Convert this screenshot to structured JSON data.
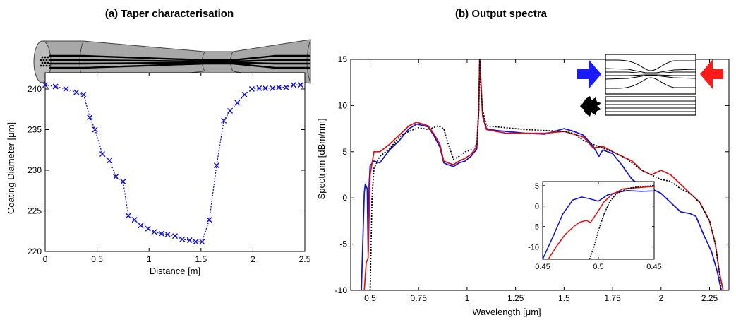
{
  "colors": {
    "blue": "#1010d8",
    "red": "#e01010",
    "black": "#000000",
    "taper_fill": "#a8a8a8"
  },
  "chart_data": [
    {
      "type": "line",
      "panel": "a",
      "title": "(a) Taper characterisation",
      "xlabel": "Distance [m]",
      "ylabel": "Coating Diameter [μm]",
      "xlim": [
        0,
        2.5
      ],
      "ylim": [
        220,
        242
      ],
      "xticks": [
        "0",
        "0.5",
        "1",
        "1.5",
        "2",
        "2.5"
      ],
      "yticks": [
        "220",
        "225",
        "230",
        "235",
        "240"
      ],
      "grid": false,
      "series": [
        {
          "color": "blue",
          "marker": "x",
          "line": "dotted",
          "points": [
            [
              0.0,
              240.5
            ],
            [
              0.1,
              240.3
            ],
            [
              0.2,
              240.0
            ],
            [
              0.3,
              239.6
            ],
            [
              0.37,
              239.3
            ],
            [
              0.43,
              236.5
            ],
            [
              0.48,
              235.0
            ],
            [
              0.55,
              232.0
            ],
            [
              0.62,
              231.2
            ],
            [
              0.68,
              229.2
            ],
            [
              0.75,
              228.6
            ],
            [
              0.8,
              224.4
            ],
            [
              0.86,
              223.9
            ],
            [
              0.92,
              223.2
            ],
            [
              0.99,
              222.8
            ],
            [
              1.05,
              222.4
            ],
            [
              1.12,
              222.2
            ],
            [
              1.18,
              222.1
            ],
            [
              1.25,
              221.9
            ],
            [
              1.32,
              221.5
            ],
            [
              1.39,
              221.4
            ],
            [
              1.45,
              221.2
            ],
            [
              1.51,
              221.2
            ],
            [
              1.58,
              223.9
            ],
            [
              1.65,
              230.6
            ],
            [
              1.72,
              236.1
            ],
            [
              1.78,
              237.3
            ],
            [
              1.85,
              238.3
            ],
            [
              1.92,
              239.3
            ],
            [
              1.99,
              240.0
            ],
            [
              2.06,
              240.1
            ],
            [
              2.12,
              240.1
            ],
            [
              2.19,
              240.1
            ],
            [
              2.25,
              240.2
            ],
            [
              2.32,
              240.2
            ],
            [
              2.39,
              240.5
            ],
            [
              2.46,
              240.5
            ]
          ]
        }
      ]
    },
    {
      "type": "line",
      "panel": "b",
      "title": "(b) Output spectra",
      "xlabel": "Wavelength [μm]",
      "ylabel": "Spectrum [dBm/nm]",
      "xlim": [
        0.4,
        2.35
      ],
      "ylim": [
        -10,
        15
      ],
      "xticks": [
        "0.5",
        "0.75",
        "1",
        "1.25",
        "1.5",
        "1.75",
        "2",
        "2.25"
      ],
      "yticks": [
        "-10",
        "-5",
        "0",
        "5",
        "10",
        "15"
      ],
      "grid": false,
      "series": [
        {
          "color": "blue",
          "line": "solid",
          "points": [
            [
              0.455,
              -10
            ],
            [
              0.47,
              0.5
            ],
            [
              0.475,
              1.5
            ],
            [
              0.485,
              1.0
            ],
            [
              0.49,
              -6
            ],
            [
              0.495,
              1.5
            ],
            [
              0.5,
              3.5
            ],
            [
              0.52,
              4.0
            ],
            [
              0.55,
              3.8
            ],
            [
              0.6,
              5.2
            ],
            [
              0.65,
              6.2
            ],
            [
              0.7,
              7.5
            ],
            [
              0.74,
              8.0
            ],
            [
              0.8,
              7.7
            ],
            [
              0.83,
              6.7
            ],
            [
              0.86,
              5.5
            ],
            [
              0.88,
              3.8
            ],
            [
              0.9,
              3.6
            ],
            [
              0.93,
              3.4
            ],
            [
              0.96,
              3.8
            ],
            [
              0.99,
              4.0
            ],
            [
              1.02,
              4.5
            ],
            [
              1.05,
              5.3
            ],
            [
              1.06,
              9.5
            ],
            [
              1.065,
              15
            ],
            [
              1.07,
              13
            ],
            [
              1.08,
              9.0
            ],
            [
              1.1,
              7.5
            ],
            [
              1.15,
              7.3
            ],
            [
              1.2,
              7.2
            ],
            [
              1.3,
              7.0
            ],
            [
              1.4,
              6.9
            ],
            [
              1.5,
              7.5
            ],
            [
              1.55,
              7.2
            ],
            [
              1.6,
              6.8
            ],
            [
              1.65,
              5.6
            ],
            [
              1.68,
              4.5
            ],
            [
              1.7,
              5.2
            ],
            [
              1.75,
              4.8
            ],
            [
              1.8,
              3.5
            ],
            [
              1.85,
              2.0
            ],
            [
              1.9,
              1.3
            ],
            [
              1.95,
              1.0
            ],
            [
              2.0,
              0.5
            ],
            [
              2.05,
              -0.5
            ],
            [
              2.1,
              -1.5
            ],
            [
              2.15,
              -1.7
            ],
            [
              2.18,
              -2.0
            ],
            [
              2.22,
              -4.0
            ],
            [
              2.26,
              -5.8
            ],
            [
              2.29,
              -8.0
            ],
            [
              2.31,
              -10
            ]
          ]
        },
        {
          "color": "red",
          "line": "solid",
          "points": [
            [
              0.47,
              -10
            ],
            [
              0.48,
              -7
            ],
            [
              0.49,
              -6.5
            ],
            [
              0.5,
              2.5
            ],
            [
              0.52,
              5.0
            ],
            [
              0.55,
              5.0
            ],
            [
              0.6,
              5.8
            ],
            [
              0.65,
              6.8
            ],
            [
              0.7,
              7.8
            ],
            [
              0.74,
              8.2
            ],
            [
              0.8,
              7.8
            ],
            [
              0.83,
              6.9
            ],
            [
              0.86,
              5.8
            ],
            [
              0.88,
              4.0
            ],
            [
              0.9,
              3.8
            ],
            [
              0.93,
              3.6
            ],
            [
              0.96,
              4.0
            ],
            [
              0.99,
              4.3
            ],
            [
              1.02,
              4.7
            ],
            [
              1.05,
              5.6
            ],
            [
              1.06,
              9.5
            ],
            [
              1.065,
              15
            ],
            [
              1.07,
              13
            ],
            [
              1.08,
              8.8
            ],
            [
              1.1,
              7.4
            ],
            [
              1.2,
              7.0
            ],
            [
              1.3,
              7.0
            ],
            [
              1.4,
              7.0
            ],
            [
              1.5,
              7.2
            ],
            [
              1.55,
              6.9
            ],
            [
              1.6,
              6.6
            ],
            [
              1.65,
              5.4
            ],
            [
              1.7,
              5.6
            ],
            [
              1.75,
              5.0
            ],
            [
              1.8,
              4.5
            ],
            [
              1.85,
              4.0
            ],
            [
              1.9,
              3.0
            ],
            [
              1.95,
              2.5
            ],
            [
              2.0,
              3.0
            ],
            [
              2.05,
              2.5
            ],
            [
              2.1,
              1.5
            ],
            [
              2.15,
              0.5
            ],
            [
              2.2,
              -0.5
            ],
            [
              2.25,
              -2.5
            ],
            [
              2.28,
              -5.0
            ],
            [
              2.3,
              -8.0
            ],
            [
              2.32,
              -10
            ]
          ]
        },
        {
          "color": "black",
          "line": "dotted",
          "points": [
            [
              0.5,
              -10
            ],
            [
              0.505,
              -5
            ],
            [
              0.51,
              0
            ],
            [
              0.52,
              3.2
            ],
            [
              0.55,
              4.5
            ],
            [
              0.6,
              5.3
            ],
            [
              0.65,
              6.6
            ],
            [
              0.7,
              7.2
            ],
            [
              0.75,
              7.6
            ],
            [
              0.8,
              7.4
            ],
            [
              0.85,
              7.8
            ],
            [
              0.88,
              7.5
            ],
            [
              0.9,
              6.0
            ],
            [
              0.93,
              4.2
            ],
            [
              0.96,
              4.5
            ],
            [
              0.99,
              5.0
            ],
            [
              1.02,
              5.2
            ],
            [
              1.05,
              5.8
            ],
            [
              1.06,
              9.5
            ],
            [
              1.065,
              15
            ],
            [
              1.07,
              12
            ],
            [
              1.08,
              9.5
            ],
            [
              1.1,
              7.8
            ],
            [
              1.2,
              7.6
            ],
            [
              1.3,
              7.4
            ],
            [
              1.4,
              7.3
            ],
            [
              1.5,
              7.2
            ],
            [
              1.55,
              7.0
            ],
            [
              1.6,
              6.2
            ],
            [
              1.7,
              5.4
            ],
            [
              1.75,
              5.0
            ],
            [
              1.8,
              4.5
            ],
            [
              1.85,
              3.8
            ],
            [
              1.9,
              3.0
            ],
            [
              1.95,
              2.5
            ],
            [
              2.0,
              2.0
            ],
            [
              2.05,
              1.8
            ],
            [
              2.1,
              1.0
            ],
            [
              2.15,
              0.5
            ],
            [
              2.2,
              -0.5
            ],
            [
              2.25,
              -2.5
            ],
            [
              2.28,
              -5.0
            ],
            [
              2.3,
              -8.0
            ],
            [
              2.31,
              -10
            ]
          ]
        }
      ],
      "inset": {
        "xticks": [
          "0.45",
          "0.5",
          "0.45"
        ],
        "yticks": [
          "5",
          "0",
          "-5",
          "-10"
        ],
        "ylim": [
          -13,
          6
        ],
        "series": [
          {
            "color": "blue",
            "points": [
              [
                0.0,
                -13
              ],
              [
                0.1,
                -7
              ],
              [
                0.18,
                -2
              ],
              [
                0.27,
                1.5
              ],
              [
                0.35,
                2.2
              ],
              [
                0.42,
                1.8
              ],
              [
                0.5,
                1.2
              ],
              [
                0.58,
                2.7
              ],
              [
                0.66,
                3.3
              ],
              [
                0.76,
                3.8
              ],
              [
                0.88,
                3.6
              ],
              [
                1.0,
                3.7
              ]
            ]
          },
          {
            "color": "red",
            "points": [
              [
                0.05,
                -13
              ],
              [
                0.12,
                -10
              ],
              [
                0.2,
                -7
              ],
              [
                0.28,
                -5
              ],
              [
                0.33,
                -4
              ],
              [
                0.39,
                -3.5
              ],
              [
                0.43,
                -4
              ],
              [
                0.48,
                -2
              ],
              [
                0.55,
                1.0
              ],
              [
                0.62,
                2.8
              ],
              [
                0.72,
                4.2
              ],
              [
                0.85,
                4.5
              ],
              [
                1.0,
                4.8
              ]
            ]
          },
          {
            "color": "black",
            "points": [
              [
                0.42,
                -13
              ],
              [
                0.46,
                -10
              ],
              [
                0.5,
                -6
              ],
              [
                0.55,
                -2
              ],
              [
                0.6,
                1.0
              ],
              [
                0.66,
                3.0
              ],
              [
                0.76,
                4.3
              ],
              [
                0.88,
                4.8
              ],
              [
                1.0,
                5.0
              ]
            ]
          }
        ]
      }
    }
  ]
}
